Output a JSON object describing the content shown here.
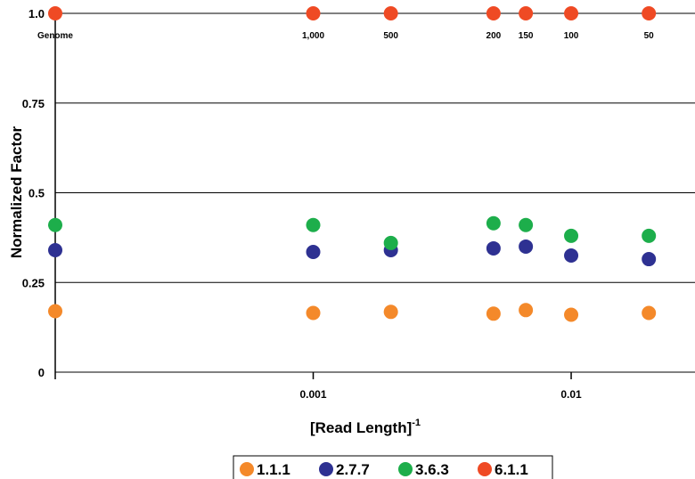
{
  "chart_data": {
    "type": "scatter",
    "xlabel": "[Read Length]",
    "xlabel_sup": "-1",
    "ylabel": "Normalized Factor",
    "x_scale": "log",
    "ylim": [
      0,
      1.0
    ],
    "grid": "horizontal",
    "legend_position": "bottom",
    "y_ticks": [
      {
        "value": 0,
        "label": "0"
      },
      {
        "value": 0.25,
        "label": "0.25"
      },
      {
        "value": 0.5,
        "label": "0.5"
      },
      {
        "value": 0.75,
        "label": "0.75"
      },
      {
        "value": 1.0,
        "label": "1.0"
      }
    ],
    "x_ticks": [
      {
        "value": 0.001,
        "label": "0.001"
      },
      {
        "value": 0.01,
        "label": "0.01"
      }
    ],
    "read_length_labels": [
      "Genome",
      "1,000",
      "500",
      "200",
      "150",
      "100",
      "50"
    ],
    "x": [
      0.0001,
      0.001,
      0.002,
      0.005,
      0.00667,
      0.01,
      0.02
    ],
    "series": [
      {
        "name": "1.1.1",
        "color": "#F4892A",
        "values": [
          0.17,
          0.165,
          0.168,
          0.163,
          0.173,
          0.16,
          0.165
        ]
      },
      {
        "name": "2.7.7",
        "color": "#2E3192",
        "values": [
          0.34,
          0.335,
          0.34,
          0.345,
          0.35,
          0.325,
          0.315
        ]
      },
      {
        "name": "3.6.3",
        "color": "#1DAE4B",
        "values": [
          0.41,
          0.41,
          0.36,
          0.415,
          0.41,
          0.38,
          0.38
        ]
      },
      {
        "name": "6.1.1",
        "color": "#EF4A24",
        "values": [
          1.0,
          1.0,
          1.0,
          1.0,
          1.0,
          1.0,
          1.0
        ]
      }
    ]
  }
}
